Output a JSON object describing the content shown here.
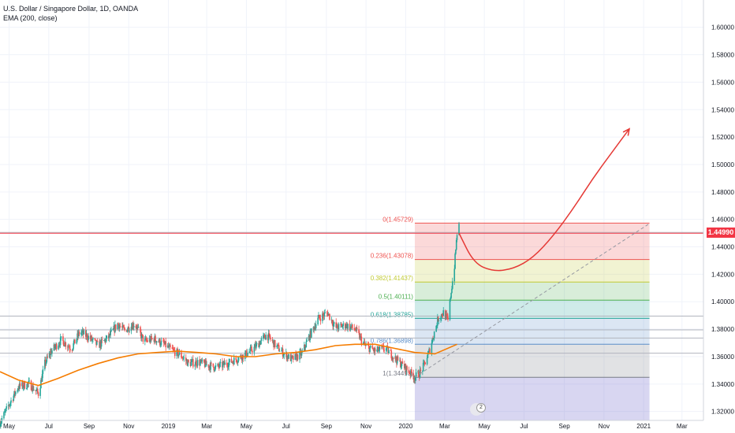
{
  "header": {
    "title": "U.S. Dollar / Singapore Dollar, 1D, OANDA",
    "indicator": "EMA (200, close)"
  },
  "colors": {
    "up": "#26a69a",
    "down": "#ef5350",
    "ema": "#f57c00",
    "current_price": "#f23645",
    "forecast_arrow": "#e53935",
    "grid": "#f0f3fa"
  },
  "current_price_label": "1.44990",
  "badge_text": "2",
  "chart_data": {
    "type": "candlestick",
    "symbol": "USDSGD",
    "interval": "1D",
    "y_axis": {
      "range": [
        1.3135,
        1.6199
      ],
      "ticks": [
        "1.32000",
        "1.34000",
        "1.36000",
        "1.38000",
        "1.40000",
        "1.42000",
        "1.44000",
        "1.46000",
        "1.48000",
        "1.50000",
        "1.52000",
        "1.54000",
        "1.56000",
        "1.58000",
        "1.60000"
      ],
      "scale": "linear",
      "position": "right"
    },
    "x_axis": {
      "range": [
        "2018-04-17",
        "2021-04-03"
      ],
      "ticks": [
        {
          "date": "2018-05-01",
          "label": "May"
        },
        {
          "date": "2018-07-01",
          "label": "Jul"
        },
        {
          "date": "2018-09-01",
          "label": "Sep"
        },
        {
          "date": "2018-11-01",
          "label": "Nov"
        },
        {
          "date": "2019-01-01",
          "label": "2019"
        },
        {
          "date": "2019-03-01",
          "label": "Mar"
        },
        {
          "date": "2019-05-01",
          "label": "May"
        },
        {
          "date": "2019-07-01",
          "label": "Jul"
        },
        {
          "date": "2019-09-01",
          "label": "Sep"
        },
        {
          "date": "2019-11-01",
          "label": "Nov"
        },
        {
          "date": "2020-01-01",
          "label": "2020"
        },
        {
          "date": "2020-03-01",
          "label": "Mar"
        },
        {
          "date": "2020-05-01",
          "label": "May"
        },
        {
          "date": "2020-07-01",
          "label": "Jul"
        },
        {
          "date": "2020-09-01",
          "label": "Sep"
        },
        {
          "date": "2020-11-01",
          "label": "Nov"
        },
        {
          "date": "2021-01-01",
          "label": "2021"
        },
        {
          "date": "2021-03-01",
          "label": "Mar"
        }
      ]
    },
    "grid": true,
    "price_path": [
      [
        "2018-04-17",
        1.312
      ],
      [
        "2018-05-01",
        1.325
      ],
      [
        "2018-05-15",
        1.338
      ],
      [
        "2018-06-01",
        1.34
      ],
      [
        "2018-06-15",
        1.333
      ],
      [
        "2018-06-25",
        1.355
      ],
      [
        "2018-07-05",
        1.364
      ],
      [
        "2018-07-20",
        1.372
      ],
      [
        "2018-08-05",
        1.366
      ],
      [
        "2018-08-18",
        1.378
      ],
      [
        "2018-09-01",
        1.374
      ],
      [
        "2018-09-15",
        1.368
      ],
      [
        "2018-10-01",
        1.374
      ],
      [
        "2018-10-15",
        1.384
      ],
      [
        "2018-10-25",
        1.379
      ],
      [
        "2018-11-10",
        1.384
      ],
      [
        "2018-11-25",
        1.371
      ],
      [
        "2018-12-10",
        1.373
      ],
      [
        "2018-12-25",
        1.369
      ],
      [
        "2019-01-05",
        1.365
      ],
      [
        "2019-01-20",
        1.361
      ],
      [
        "2019-02-01",
        1.355
      ],
      [
        "2019-02-15",
        1.356
      ],
      [
        "2019-03-01",
        1.354
      ],
      [
        "2019-03-15",
        1.352
      ],
      [
        "2019-04-01",
        1.355
      ],
      [
        "2019-04-15",
        1.358
      ],
      [
        "2019-05-01",
        1.362
      ],
      [
        "2019-05-15",
        1.367
      ],
      [
        "2019-06-01",
        1.376
      ],
      [
        "2019-06-15",
        1.368
      ],
      [
        "2019-06-28",
        1.362
      ],
      [
        "2019-07-10",
        1.358
      ],
      [
        "2019-07-25",
        1.362
      ],
      [
        "2019-08-05",
        1.374
      ],
      [
        "2019-08-20",
        1.388
      ],
      [
        "2019-09-03",
        1.392
      ],
      [
        "2019-09-15",
        1.381
      ],
      [
        "2019-10-01",
        1.383
      ],
      [
        "2019-10-15",
        1.38
      ],
      [
        "2019-10-30",
        1.368
      ],
      [
        "2019-11-15",
        1.364
      ],
      [
        "2019-12-01",
        1.366
      ],
      [
        "2019-12-15",
        1.359
      ],
      [
        "2019-12-31",
        1.352
      ],
      [
        "2020-01-15",
        1.345
      ],
      [
        "2020-01-25",
        1.349
      ],
      [
        "2020-02-05",
        1.362
      ],
      [
        "2020-02-20",
        1.388
      ],
      [
        "2020-02-28",
        1.392
      ],
      [
        "2020-03-06",
        1.386
      ],
      [
        "2020-03-10",
        1.404
      ],
      [
        "2020-03-16",
        1.426
      ],
      [
        "2020-03-20",
        1.45
      ],
      [
        "2020-03-23",
        1.455
      ]
    ],
    "ema": {
      "name": "EMA (200, close)",
      "points": [
        [
          "2018-04-17",
          1.349
        ],
        [
          "2018-05-15",
          1.343
        ],
        [
          "2018-06-15",
          1.339
        ],
        [
          "2018-07-15",
          1.344
        ],
        [
          "2018-08-15",
          1.35
        ],
        [
          "2018-09-15",
          1.355
        ],
        [
          "2018-10-15",
          1.359
        ],
        [
          "2018-11-15",
          1.362
        ],
        [
          "2018-12-15",
          1.363
        ],
        [
          "2019-01-15",
          1.364
        ],
        [
          "2019-02-15",
          1.363
        ],
        [
          "2019-03-15",
          1.362
        ],
        [
          "2019-04-15",
          1.36
        ],
        [
          "2019-05-15",
          1.36
        ],
        [
          "2019-06-15",
          1.362
        ],
        [
          "2019-07-15",
          1.363
        ],
        [
          "2019-08-15",
          1.365
        ],
        [
          "2019-09-15",
          1.368
        ],
        [
          "2019-10-15",
          1.369
        ],
        [
          "2019-11-15",
          1.369
        ],
        [
          "2019-12-15",
          1.366
        ],
        [
          "2020-01-15",
          1.363
        ],
        [
          "2020-02-15",
          1.362
        ],
        [
          "2020-03-20",
          1.369
        ]
      ]
    },
    "fibonacci": {
      "start_date": "2020-01-15",
      "end_date": "2021-01-10",
      "levels": [
        {
          "ratio": 0,
          "label": "0(1.45729)",
          "price": 1.45729,
          "color": "#ef5350"
        },
        {
          "ratio": 0.236,
          "label": "0.236(1.43078)",
          "price": 1.43078,
          "color": "#ef5350"
        },
        {
          "ratio": 0.382,
          "label": "0.382(1.41437)",
          "price": 1.41437,
          "color": "#c0ca33"
        },
        {
          "ratio": 0.5,
          "label": "0.5(1.40111)",
          "price": 1.40111,
          "color": "#4caf50"
        },
        {
          "ratio": 0.618,
          "label": "0.618(1.38785)",
          "price": 1.38785,
          "color": "#26a69a"
        },
        {
          "ratio": 0.786,
          "label": "0.786(1.36898)",
          "price": 1.36898,
          "color": "#5b8ec9"
        },
        {
          "ratio": 1,
          "label": "1(1.34493)",
          "price": 1.34493,
          "color": "#787b86"
        }
      ],
      "below_one_color": "#7e78d2"
    },
    "forecast_curve": [
      [
        "2020-03-23",
        1.45
      ],
      [
        "2020-04-15",
        1.428
      ],
      [
        "2020-05-15",
        1.422
      ],
      [
        "2020-06-15",
        1.424
      ],
      [
        "2020-07-15",
        1.432
      ],
      [
        "2020-08-15",
        1.448
      ],
      [
        "2020-09-15",
        1.468
      ],
      [
        "2020-10-15",
        1.49
      ],
      [
        "2020-11-15",
        1.51
      ],
      [
        "2020-12-10",
        1.526
      ]
    ],
    "trendline": [
      [
        "2020-01-15",
        1.345
      ],
      [
        "2021-01-10",
        1.457
      ]
    ],
    "horizontal_lines": [
      1.4505,
      1.3895,
      1.3795,
      1.3735,
      1.3625
    ],
    "current_price": 1.4499
  }
}
